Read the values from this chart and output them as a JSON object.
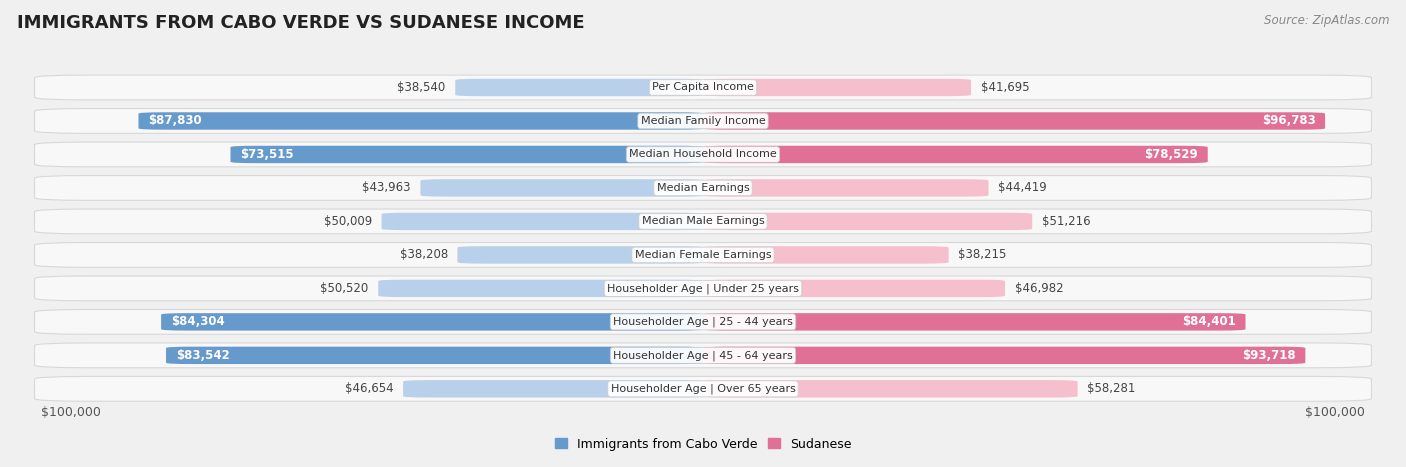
{
  "title": "IMMIGRANTS FROM CABO VERDE VS SUDANESE INCOME",
  "source": "Source: ZipAtlas.com",
  "categories": [
    "Per Capita Income",
    "Median Family Income",
    "Median Household Income",
    "Median Earnings",
    "Median Male Earnings",
    "Median Female Earnings",
    "Householder Age | Under 25 years",
    "Householder Age | 25 - 44 years",
    "Householder Age | 45 - 64 years",
    "Householder Age | Over 65 years"
  ],
  "cabo_verde_values": [
    38540,
    87830,
    73515,
    43963,
    50009,
    38208,
    50520,
    84304,
    83542,
    46654
  ],
  "sudanese_values": [
    41695,
    96783,
    78529,
    44419,
    51216,
    38215,
    46982,
    84401,
    93718,
    58281
  ],
  "cabo_verde_labels": [
    "$38,540",
    "$87,830",
    "$73,515",
    "$43,963",
    "$50,009",
    "$38,208",
    "$50,520",
    "$84,304",
    "$83,542",
    "$46,654"
  ],
  "sudanese_labels": [
    "$41,695",
    "$96,783",
    "$78,529",
    "$44,419",
    "$51,216",
    "$38,215",
    "$46,982",
    "$84,401",
    "$93,718",
    "$58,281"
  ],
  "cabo_verde_color_light": "#b8d0ea",
  "cabo_verde_color_dark": "#6699cc",
  "sudanese_color_light": "#f5bfcd",
  "sudanese_color_dark": "#e07095",
  "max_value": 100000,
  "background_color": "#f0f0f0",
  "row_bg_color": "#f8f8f8",
  "row_border_color": "#d8d8d8",
  "legend_cabo_verde": "Immigrants from Cabo Verde",
  "legend_sudanese": "Sudanese",
  "xlabel_left": "$100,000",
  "xlabel_right": "$100,000",
  "title_fontsize": 13,
  "label_fontsize": 8.5,
  "dark_indices": [
    1,
    2,
    7,
    8
  ]
}
